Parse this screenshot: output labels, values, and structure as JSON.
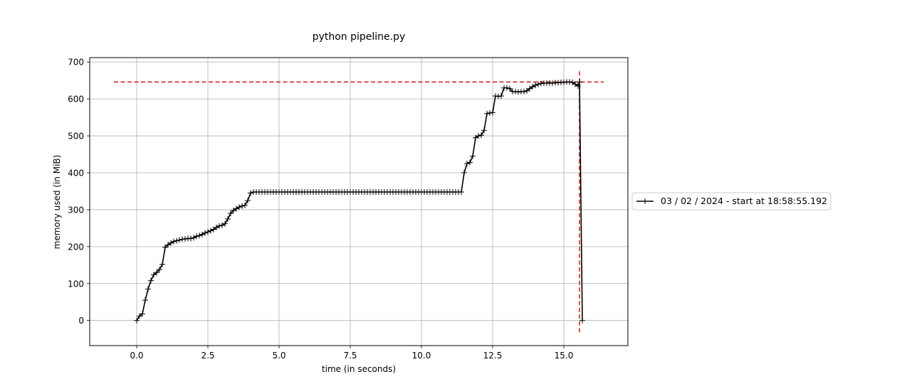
{
  "chart_data": {
    "type": "line",
    "title": "python pipeline.py",
    "xlabel": "time (in seconds)",
    "ylabel": "memory used (in MiB)",
    "xlim": [
      -1.65,
      17.25
    ],
    "ylim": [
      -68,
      712
    ],
    "xticks": [
      0.0,
      2.5,
      5.0,
      7.5,
      10.0,
      12.5,
      15.0
    ],
    "xtick_labels": [
      "0.0",
      "2.5",
      "5.0",
      "7.5",
      "10.0",
      "12.5",
      "15.0"
    ],
    "yticks": [
      0,
      100,
      200,
      300,
      400,
      500,
      600,
      700
    ],
    "ytick_labels": [
      "0",
      "100",
      "200",
      "300",
      "400",
      "500",
      "600",
      "700"
    ],
    "grid": true,
    "legend_placement": "center-right-outside",
    "series": [
      {
        "name": "03 / 02 / 2024 - start at 18:58:55.192",
        "color": "#000000",
        "marker": "+",
        "x": [
          0.0,
          0.1,
          0.2,
          0.3,
          0.4,
          0.5,
          0.6,
          0.7,
          0.8,
          0.9,
          1.0,
          1.1,
          1.2,
          1.3,
          1.4,
          1.5,
          1.6,
          1.7,
          1.8,
          1.9,
          2.0,
          2.1,
          2.2,
          2.3,
          2.4,
          2.5,
          2.6,
          2.7,
          2.8,
          2.9,
          3.0,
          3.1,
          3.2,
          3.3,
          3.4,
          3.5,
          3.6,
          3.7,
          3.8,
          3.9,
          4.0,
          4.1,
          4.2,
          4.3,
          4.4,
          4.5,
          4.6,
          4.7,
          4.8,
          4.9,
          5.0,
          5.1,
          5.2,
          5.3,
          5.4,
          5.5,
          5.6,
          5.7,
          5.8,
          5.9,
          6.0,
          6.1,
          6.2,
          6.3,
          6.4,
          6.5,
          6.6,
          6.7,
          6.8,
          6.9,
          7.0,
          7.1,
          7.2,
          7.3,
          7.4,
          7.5,
          7.6,
          7.7,
          7.8,
          7.9,
          8.0,
          8.1,
          8.2,
          8.3,
          8.4,
          8.5,
          8.6,
          8.7,
          8.8,
          8.9,
          9.0,
          9.1,
          9.2,
          9.3,
          9.4,
          9.5,
          9.6,
          9.7,
          9.8,
          9.9,
          10.0,
          10.1,
          10.2,
          10.3,
          10.4,
          10.5,
          10.6,
          10.7,
          10.8,
          10.9,
          11.0,
          11.1,
          11.2,
          11.3,
          11.4,
          11.5,
          11.6,
          11.7,
          11.8,
          11.9,
          12.0,
          12.1,
          12.2,
          12.3,
          12.4,
          12.5,
          12.6,
          12.7,
          12.8,
          12.9,
          13.0,
          13.1,
          13.2,
          13.3,
          13.4,
          13.5,
          13.6,
          13.7,
          13.8,
          13.9,
          14.0,
          14.1,
          14.2,
          14.3,
          14.4,
          14.5,
          14.6,
          14.7,
          14.8,
          14.9,
          15.0,
          15.1,
          15.2,
          15.3,
          15.4,
          15.5,
          15.55,
          15.65
        ],
        "y": [
          0,
          12,
          18,
          55,
          85,
          108,
          124,
          130,
          138,
          152,
          198,
          205,
          210,
          214,
          216,
          218,
          220,
          221,
          222,
          222,
          224,
          228,
          230,
          233,
          237,
          240,
          243,
          247,
          252,
          256,
          258,
          262,
          275,
          290,
          298,
          303,
          307,
          310,
          312,
          325,
          345,
          348,
          348,
          348,
          348,
          348,
          348,
          348,
          348,
          348,
          348,
          348,
          348,
          348,
          348,
          348,
          348,
          348,
          348,
          348,
          348,
          348,
          348,
          348,
          348,
          348,
          348,
          348,
          348,
          348,
          348,
          348,
          348,
          348,
          348,
          348,
          348,
          348,
          348,
          348,
          348,
          348,
          348,
          348,
          348,
          348,
          348,
          348,
          348,
          348,
          348,
          348,
          348,
          348,
          348,
          348,
          348,
          348,
          348,
          348,
          348,
          348,
          348,
          348,
          348,
          348,
          348,
          348,
          348,
          348,
          348,
          348,
          348,
          348,
          348,
          400,
          425,
          428,
          445,
          495,
          500,
          502,
          515,
          560,
          562,
          563,
          608,
          607,
          608,
          630,
          630,
          628,
          620,
          620,
          619,
          620,
          620,
          622,
          628,
          633,
          637,
          640,
          642,
          643,
          643,
          643,
          643,
          644,
          644,
          645,
          645,
          646,
          646,
          645,
          640,
          635,
          646,
          0
        ]
      }
    ],
    "max_marker": {
      "color": "#d62728",
      "y": 646,
      "x": 15.55,
      "h_line_x": [
        -0.8,
        16.4
      ],
      "v_line_y": [
        -32,
        680
      ]
    }
  }
}
